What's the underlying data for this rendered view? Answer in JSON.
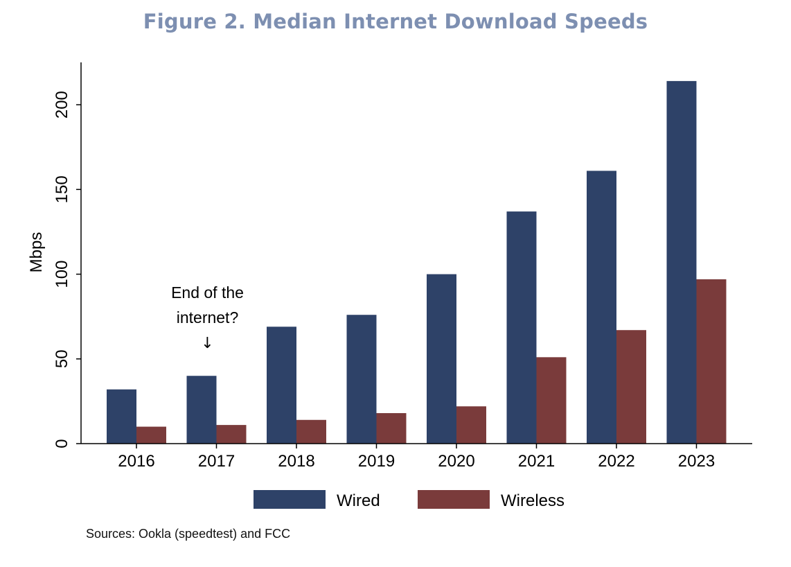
{
  "chart_data": {
    "type": "bar",
    "title": "Figure 2. Median Internet Download Speeds",
    "xlabel": "",
    "ylabel": "Mbps",
    "ylim": [
      0,
      225
    ],
    "yticks": [
      "0",
      "50",
      "100",
      "150",
      "200"
    ],
    "categories": [
      "2016",
      "2017",
      "2018",
      "2019",
      "2020",
      "2021",
      "2022",
      "2023"
    ],
    "series": [
      {
        "name": "Wired",
        "color": "#2e4268",
        "values": [
          32,
          40,
          69,
          76,
          100,
          137,
          161,
          214
        ]
      },
      {
        "name": "Wireless",
        "color": "#7a3b3b",
        "values": [
          10,
          11,
          14,
          18,
          22,
          51,
          67,
          97
        ]
      }
    ],
    "annotation": {
      "line1": "End of the",
      "line2": "internet?",
      "arrow": "↓",
      "category": "2017"
    },
    "legend_position": "bottom",
    "grid": false,
    "source": "Sources: Ookla (speedtest) and FCC"
  }
}
